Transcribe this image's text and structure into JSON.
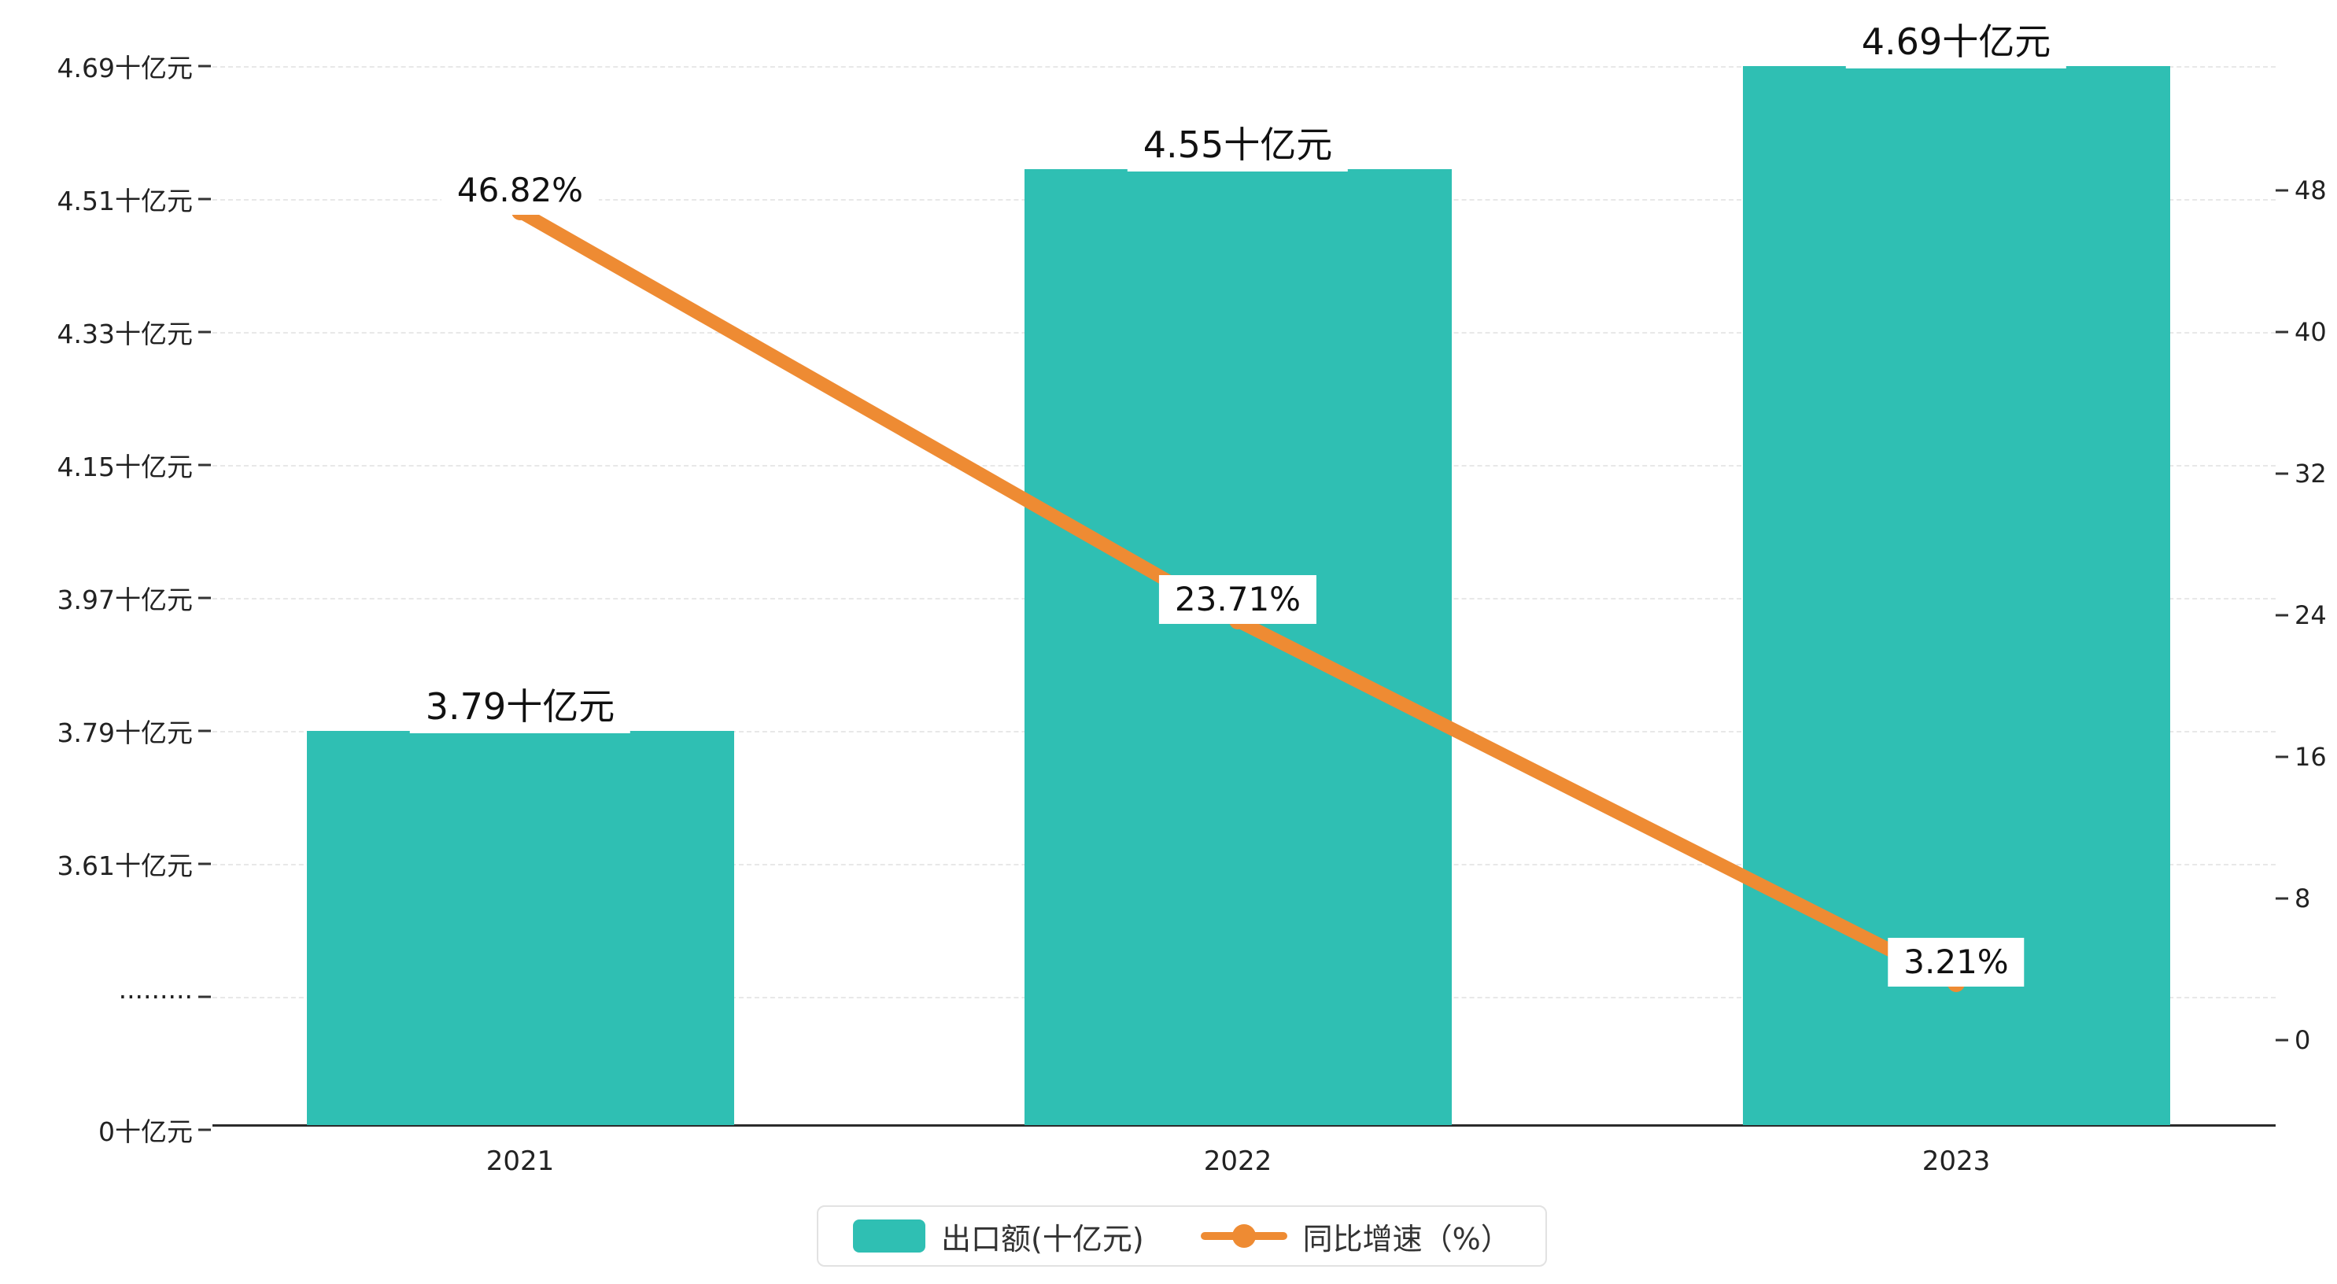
{
  "chart_data": {
    "type": "bar",
    "subtype": "bar-line-combo",
    "title": "",
    "categories": [
      "2021",
      "2022",
      "2023"
    ],
    "series": [
      {
        "name": "出口额(十亿元)",
        "type": "bar",
        "axis": "left",
        "unit": "十亿元",
        "values": [
          3.79,
          4.55,
          4.69
        ],
        "labels": [
          "3.79十亿元",
          "4.55十亿元",
          "4.69十亿元"
        ],
        "color": "#2fbfb3"
      },
      {
        "name": "同比增速（%）",
        "type": "line",
        "axis": "right",
        "unit": "%",
        "values": [
          46.82,
          23.71,
          3.21
        ],
        "labels": [
          "46.82%",
          "23.71%",
          "3.21%"
        ],
        "color": "#ee8b33"
      }
    ],
    "left_axis": {
      "tick_labels": [
        "4.69十亿元",
        "4.51十亿元",
        "4.33十亿元",
        "4.15十亿元",
        "3.97十亿元",
        "3.79十亿元",
        "3.61十亿元",
        "·········",
        "0十亿元"
      ],
      "top_value": 4.69,
      "tick_step": 0.18,
      "has_break": true
    },
    "right_axis": {
      "tick_labels": [
        "48",
        "40",
        "32",
        "24",
        "16",
        "8",
        "0"
      ],
      "max": 48,
      "min": 0,
      "step": 8
    },
    "grid": true,
    "legend_position": "bottom"
  }
}
